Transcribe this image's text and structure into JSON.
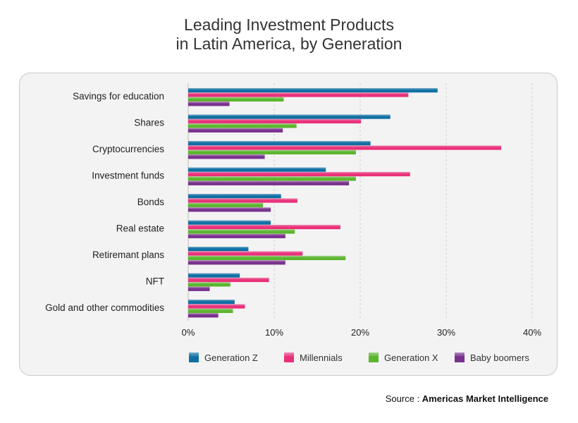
{
  "title": {
    "line1": "Leading Investment Products",
    "line2": "in Latin America, by Generation"
  },
  "source": {
    "prefix": "Source : ",
    "name": "Americas Market Intelligence"
  },
  "colors": {
    "Generation Z": "#0f6fa3",
    "Millennials": "#e9317a",
    "Generation X": "#5cb52f",
    "Baby boomers": "#7a318e"
  },
  "chart_data": {
    "type": "bar",
    "orientation": "horizontal",
    "title": "Leading Investment Products in Latin America, by Generation",
    "xlabel": "",
    "ylabel": "",
    "xlim": [
      0,
      40
    ],
    "xticks": [
      0,
      10,
      20,
      30,
      40
    ],
    "xtick_labels": [
      "0%",
      "10%",
      "20%",
      "30%",
      "40%"
    ],
    "grid": true,
    "legend_position": "bottom",
    "categories": [
      "Savings for education",
      "Shares",
      "Cryptocurrencies",
      "Investment funds",
      "Bonds",
      "Real estate",
      "Retiremant plans",
      "NFT",
      "Gold and other commodities"
    ],
    "series": [
      {
        "name": "Generation Z",
        "values": [
          29,
          23.5,
          21.2,
          16,
          10.8,
          9.6,
          7,
          6,
          5.4
        ]
      },
      {
        "name": "Millennials",
        "values": [
          25.6,
          20.1,
          36.4,
          25.8,
          12.7,
          17.7,
          13.3,
          9.4,
          6.6
        ]
      },
      {
        "name": "Generation X",
        "values": [
          11.1,
          12.6,
          19.5,
          19.5,
          8.7,
          12.4,
          18.3,
          4.9,
          5.2
        ]
      },
      {
        "name": "Baby boomers",
        "values": [
          4.8,
          11,
          8.9,
          18.7,
          9.6,
          11.3,
          11.3,
          2.5,
          3.5
        ]
      }
    ]
  }
}
